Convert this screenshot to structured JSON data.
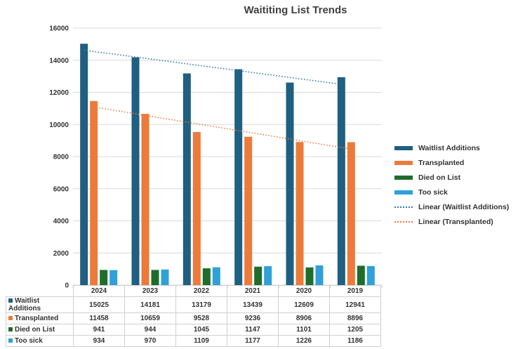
{
  "chart_data": {
    "type": "bar",
    "title": "Waititing List Trends",
    "categories": [
      "2024",
      "2023",
      "2022",
      "2021",
      "2020",
      "2019"
    ],
    "ylim": [
      0,
      16000
    ],
    "yticks": [
      0,
      2000,
      4000,
      6000,
      8000,
      10000,
      12000,
      14000,
      16000
    ],
    "grid": true,
    "legend_position": "right",
    "series": [
      {
        "name": "Waitlist Additions",
        "color": "#1f5f82",
        "values": [
          15025,
          14181,
          13179,
          13439,
          12609,
          12941
        ]
      },
      {
        "name": "Transplanted",
        "color": "#ec7b3a",
        "values": [
          11458,
          10659,
          9528,
          9236,
          8906,
          8896
        ]
      },
      {
        "name": "Died on List",
        "color": "#1e6d2c",
        "values": [
          941,
          944,
          1045,
          1147,
          1101,
          1205
        ]
      },
      {
        "name": "Too sick",
        "color": "#2fa0d8",
        "values": [
          934,
          970,
          1109,
          1177,
          1226,
          1186
        ]
      }
    ],
    "trendlines": [
      {
        "name": "Linear (Waitlist Additions)",
        "series_index": 0,
        "color": "#2a7aa0"
      },
      {
        "name": "Linear (Transplanted)",
        "series_index": 1,
        "color": "#ec7b3a"
      }
    ]
  }
}
